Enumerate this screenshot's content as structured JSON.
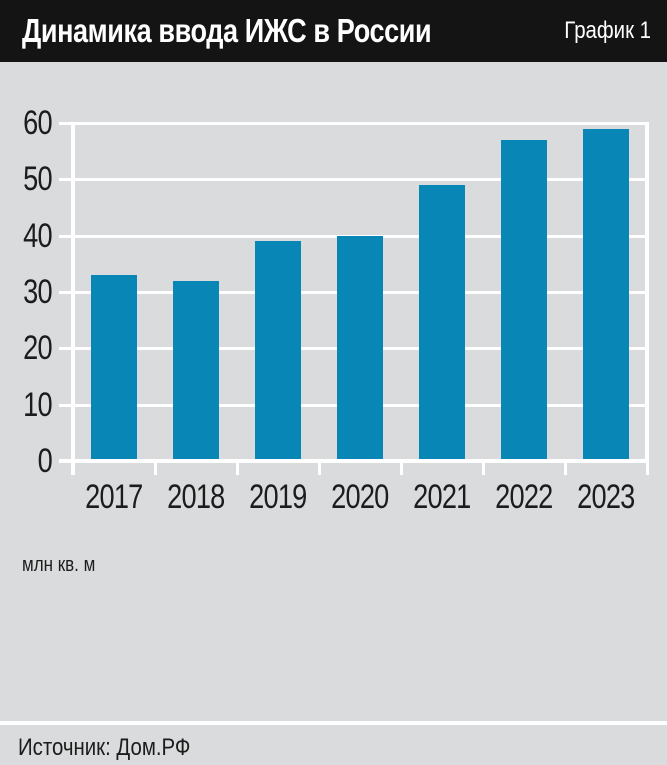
{
  "header": {
    "title": "Динамика ввода ИЖС в России",
    "tag": "График 1"
  },
  "chart_data": {
    "type": "bar",
    "title": "Динамика ввода ИЖС в России",
    "categories": [
      "2017",
      "2018",
      "2019",
      "2020",
      "2021",
      "2022",
      "2023"
    ],
    "values": [
      33,
      32,
      39,
      40,
      49,
      57,
      59
    ],
    "xlabel": "",
    "ylabel": "млн кв. м",
    "ylim": [
      0,
      60
    ],
    "yticks": [
      0,
      10,
      20,
      30,
      40,
      50,
      60
    ],
    "grid": true,
    "legend": false,
    "bar_color": "#0886b5",
    "plot_background": "#dadbdc",
    "gridline_color": "#ffffff"
  },
  "units_label": "млн кв. м",
  "footer": {
    "source": "Источник: Дом.РФ"
  },
  "colors": {
    "header_background": "#141414",
    "header_text": "#ffffff",
    "page_background": "#dadbdc",
    "text": "#1c1c1c",
    "bar": "#0886b5"
  }
}
